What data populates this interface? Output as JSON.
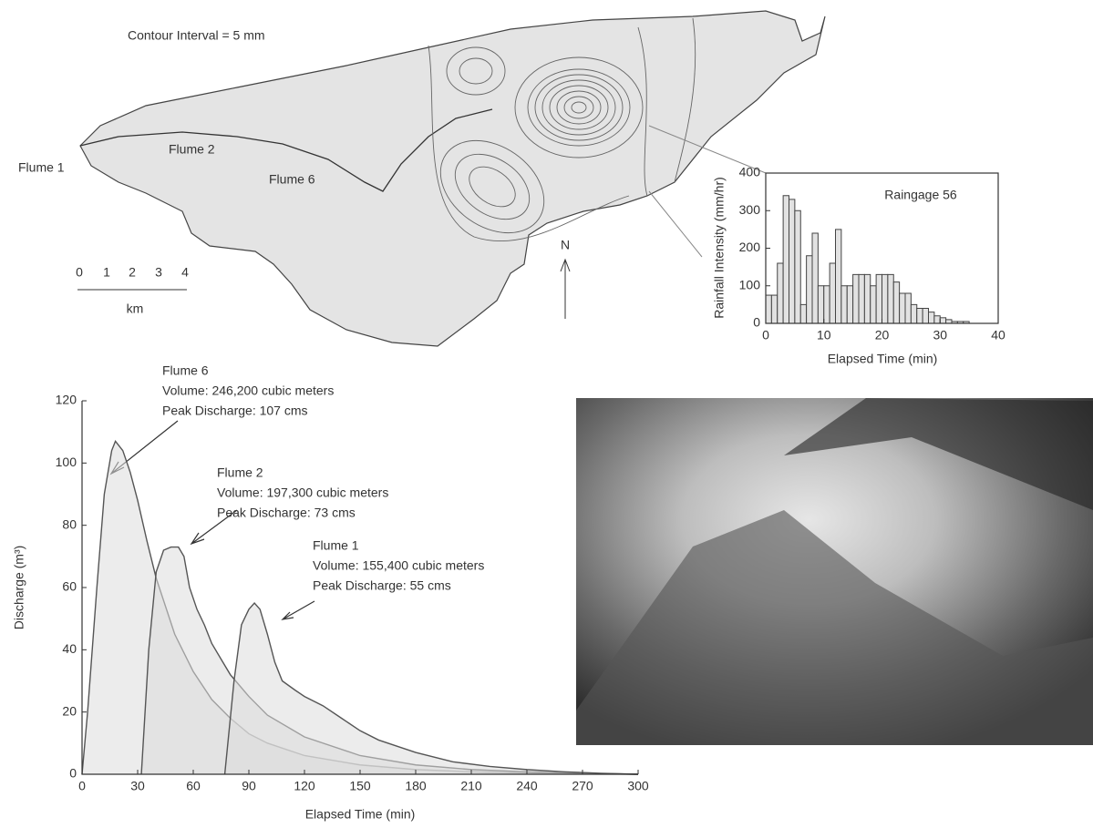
{
  "map": {
    "contour_note": "Contour Interval = 5 mm",
    "labels": [
      "Flume 1",
      "Flume 2",
      "Flume 6"
    ],
    "scale": {
      "ticks": [
        0,
        1,
        2,
        3,
        4
      ],
      "unit": "km"
    },
    "north": "N"
  },
  "chart_data": [
    {
      "type": "histogram",
      "annotation": "Raingage 56",
      "xlabel": "Elapsed Time (min)",
      "ylabel": "Rainfall Intensity (mm/hr)",
      "bins": [
        0,
        1,
        2,
        3,
        4,
        5,
        6,
        7,
        8,
        9,
        10,
        11,
        12,
        13,
        14,
        15,
        16,
        17,
        18,
        19,
        20,
        21,
        22,
        23,
        24,
        25,
        26,
        27,
        28,
        29,
        30,
        31,
        32,
        33,
        34,
        35
      ],
      "values": [
        75,
        75,
        160,
        340,
        330,
        300,
        50,
        180,
        240,
        100,
        100,
        160,
        250,
        100,
        100,
        130,
        130,
        130,
        100,
        130,
        130,
        130,
        110,
        80,
        80,
        50,
        40,
        40,
        30,
        20,
        15,
        10,
        5,
        5,
        5
      ],
      "color": "#e2e2e2",
      "xlim": [
        0,
        40
      ],
      "xticks": [
        0,
        10,
        20,
        30,
        40
      ],
      "ylim": [
        0,
        400
      ],
      "yticks": [
        0,
        100,
        200,
        300,
        400
      ]
    },
    {
      "type": "line",
      "xlabel": "Elapsed Time (min)",
      "ylabel": "Discharge (m³)",
      "xlim": [
        0,
        300
      ],
      "xticks": [
        0,
        30,
        60,
        90,
        120,
        150,
        180,
        210,
        240,
        270,
        300
      ],
      "ylim": [
        0,
        120
      ],
      "yticks": [
        0,
        20,
        40,
        60,
        80,
        100,
        120
      ],
      "series": [
        {
          "name": "Flume 6",
          "color": "#555555",
          "x": [
            0,
            3,
            8,
            12,
            16,
            18,
            22,
            26,
            30,
            35,
            40,
            50,
            60,
            70,
            80,
            90,
            100,
            120,
            150,
            180,
            210,
            240,
            270,
            300
          ],
          "values": [
            0,
            20,
            60,
            90,
            104,
            107,
            104,
            97,
            88,
            75,
            63,
            45,
            33,
            24,
            18,
            13,
            10,
            6,
            3,
            1.5,
            0.8,
            0.4,
            0.2,
            0
          ]
        },
        {
          "name": "Flume 2",
          "color": "#555555",
          "x": [
            32,
            36,
            40,
            44,
            48,
            52,
            55,
            58,
            62,
            66,
            70,
            75,
            80,
            90,
            100,
            120,
            150,
            180,
            210,
            240,
            270,
            300
          ],
          "values": [
            0,
            40,
            65,
            72,
            73,
            73,
            70,
            60,
            53,
            48,
            42,
            37,
            32,
            25,
            19,
            12,
            6,
            3,
            1.5,
            0.8,
            0.3,
            0
          ]
        },
        {
          "name": "Flume 1",
          "color": "#555555",
          "x": [
            77,
            82,
            86,
            90,
            93,
            96,
            100,
            104,
            108,
            115,
            120,
            130,
            140,
            150,
            160,
            180,
            200,
            220,
            240,
            260,
            280,
            300
          ],
          "values": [
            0,
            30,
            48,
            53,
            55,
            53,
            45,
            36,
            30,
            27,
            25,
            22,
            18,
            14,
            11,
            7,
            4,
            2.5,
            1.5,
            0.8,
            0.3,
            0
          ]
        }
      ],
      "annotations": [
        {
          "lines": [
            "Flume 6",
            "Volume:  246,200 cubic meters",
            "Peak Discharge:  107 cms"
          ]
        },
        {
          "lines": [
            "Flume 2",
            "Volume:  197,300 cubic meters",
            "Peak Discharge:  73 cms"
          ]
        },
        {
          "lines": [
            "Flume 1",
            "Volume:  155,400 cubic meters",
            "Peak Discharge:  55 cms"
          ]
        }
      ]
    }
  ]
}
